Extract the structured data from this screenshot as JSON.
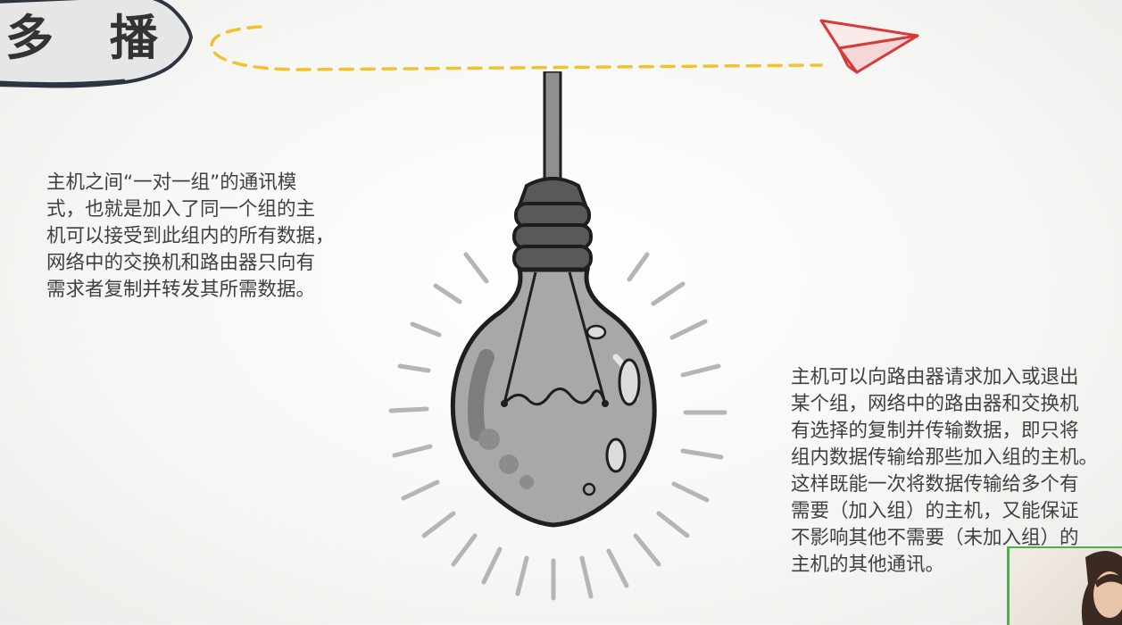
{
  "title": "多 播",
  "left_paragraph": "主机之间“一对一组”的通讯模\n式，也就是加入了同一个组的主\n机可以接受到此组内的所有数据，\n网络中的交换机和路由器只向有\n需求者复制并转发其所需数据。",
  "right_paragraph": "主机可以向路由器请求加入或退出\n某个组，网络中的路由器和交换机\n有选择的复制并传输数据，即只将\n组内数据传输给那些加入组的主机。\n这样既能一次将数据传输给多个有\n需要（加入组）的主机，又能保证\n不影响其他不需要（未加入组）的\n主机的其他通讯。",
  "colors": {
    "dash": "#f2c12e",
    "plane": "#d63a3a",
    "bulb_glass": "#a8a8a8",
    "bulb_outline": "#1e1e1e",
    "rays": "#b5b5b5",
    "webcam_border": "#4fae52"
  },
  "icons": {
    "plane": "paper-plane-icon",
    "bulb": "light-bulb-icon"
  }
}
